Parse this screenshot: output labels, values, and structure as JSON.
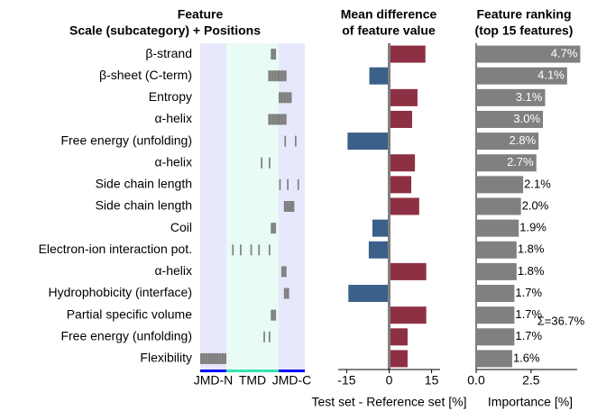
{
  "chart_data": [
    {
      "type": "positions",
      "title": [
        "Feature",
        "Scale (subcategory)  +  Positions"
      ],
      "categories": [
        "β-strand",
        "β-sheet (C-term)",
        "Entropy",
        "α-helix",
        "Free energy (unfolding)",
        "α-helix",
        "Side chain length",
        "Side chain length",
        "Coil",
        "Electron-ion interaction pot.",
        "α-helix",
        "Hydrophobicity (interface)",
        "Partial specific volume",
        "Free energy (unfolding)",
        "Flexibility"
      ],
      "positions": [
        [
          28,
          29
        ],
        [
          27,
          28,
          29,
          30,
          31,
          32,
          33
        ],
        [
          31,
          32,
          33,
          34,
          35
        ],
        [
          27,
          28,
          29,
          30,
          31,
          32,
          33
        ],
        [
          33,
          37
        ],
        [
          24,
          27
        ],
        [
          31,
          34,
          38
        ],
        [
          33,
          34,
          35,
          36
        ],
        [
          28,
          29
        ],
        [
          13,
          16,
          20,
          23,
          27
        ],
        [
          32,
          33
        ],
        [
          33,
          34
        ],
        [
          28,
          29
        ],
        [
          25,
          27
        ],
        [
          1,
          2,
          3,
          4,
          5,
          6,
          7,
          8,
          9,
          10
        ]
      ],
      "mark_color": "#808080",
      "regions": [
        {
          "label": "JMD-N",
          "start": 1,
          "end": 10,
          "color": "#0000ff",
          "background": "#e8e8fc"
        },
        {
          "label": "TMD",
          "start": 11,
          "end": 30,
          "color": "#33e3b0",
          "background": "#e8fbf4"
        },
        {
          "label": "JMD-C",
          "start": 31,
          "end": 40,
          "color": "#0000ff",
          "background": "#e8e8fc"
        }
      ]
    },
    {
      "type": "bar",
      "title": [
        "Mean difference",
        "of feature value"
      ],
      "xlabel": "Test set - Reference set [%]",
      "values": [
        12.5,
        -7,
        9.7,
        7.8,
        -14.7,
        8.8,
        7.5,
        10.3,
        -5.9,
        -7.2,
        12.8,
        -14.4,
        12.8,
        6.2,
        6.2
      ],
      "xlim": [
        -18,
        18
      ],
      "xticks": [
        -15,
        0,
        15
      ],
      "colors": {
        "positive": "#8e3043",
        "negative": "#3b6089"
      }
    },
    {
      "type": "bar",
      "title": [
        "Feature ranking",
        "(top 15 features)"
      ],
      "xlabel": "Importance [%]",
      "values": [
        4.7,
        4.1,
        3.1,
        3.0,
        2.8,
        2.7,
        2.1,
        2.0,
        1.9,
        1.8,
        1.8,
        1.7,
        1.7,
        1.7,
        1.6
      ],
      "value_labels": [
        "4.7%",
        "4.1%",
        "3.1%",
        "3.0%",
        "2.8%",
        "2.7%",
        "2.1%",
        "2.0%",
        "1.9%",
        "1.8%",
        "1.8%",
        "1.7%",
        "1.7%",
        "1.7%",
        "1.6%"
      ],
      "xlim": [
        0,
        4.6
      ],
      "xticks": [
        {
          "value": 0,
          "label": "0.0"
        },
        2.5
      ],
      "color": "#808080",
      "annotation": "Σ=36.7%"
    }
  ]
}
